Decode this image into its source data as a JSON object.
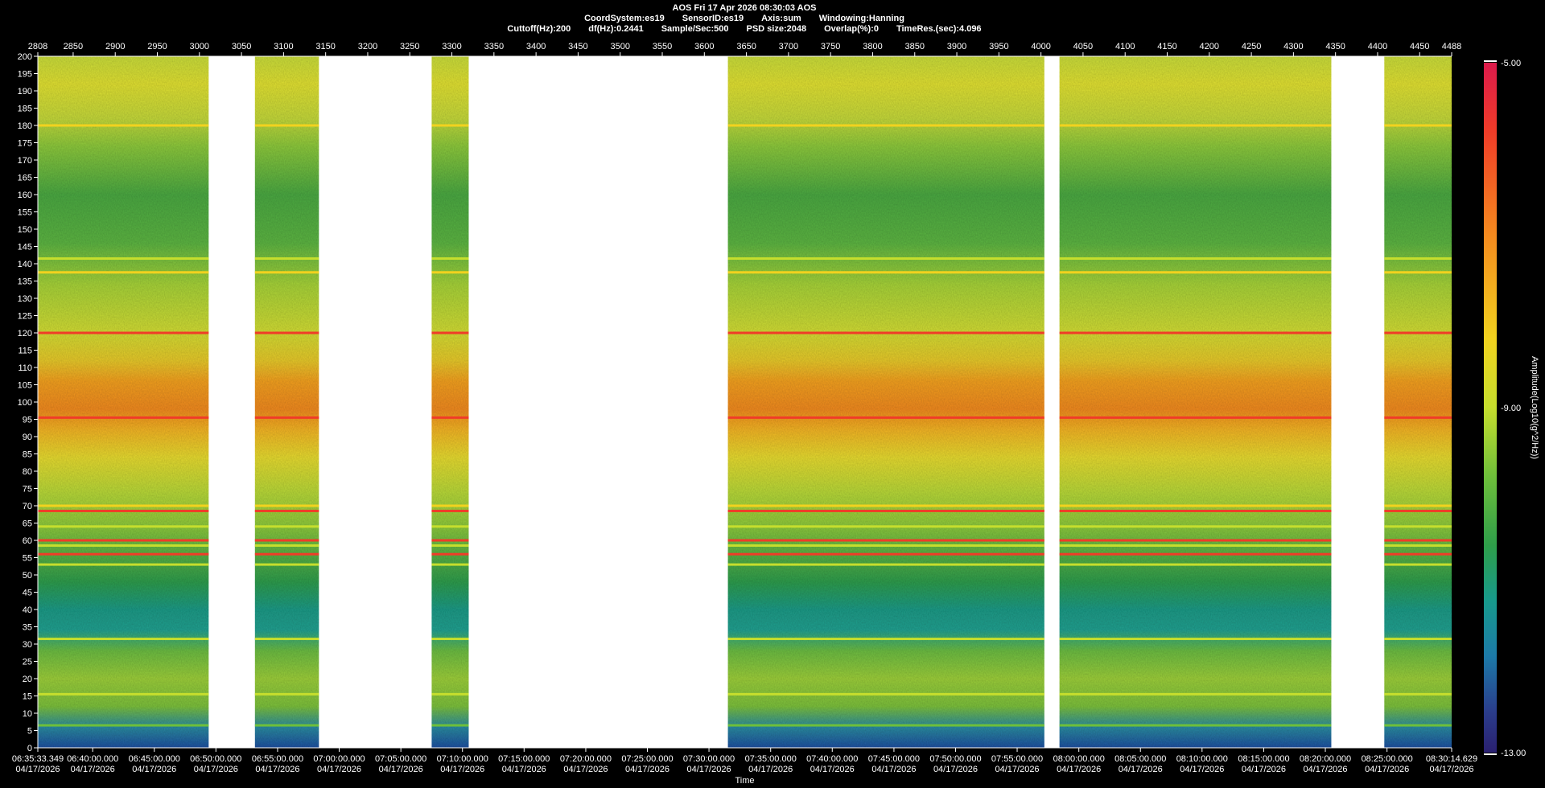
{
  "header": {
    "title": "AOS  Fri 17 Apr 2026 08:30:03  AOS",
    "line2": [
      "CoordSystem:es19",
      "SensorID:es19",
      "Axis:sum",
      "Windowing:Hanning"
    ],
    "line3": [
      "Cuttoff(Hz):200",
      "df(Hz):0.2441",
      "Sample/Sec:500",
      "PSD size:2048",
      "Overlap(%):0",
      "TimeRes.(sec):4.096"
    ]
  },
  "chart_data": {
    "type": "heatmap",
    "title": "AOS  Fri 17 Apr 2026 08:30:03  AOS",
    "xlabel": "Time",
    "ylabel": "",
    "ylim": [
      0,
      200
    ],
    "top_xlim": [
      2808,
      4488
    ],
    "top_ticks": [
      2808,
      2850,
      2900,
      2950,
      3000,
      3050,
      3100,
      3150,
      3200,
      3250,
      3300,
      3350,
      3400,
      3450,
      3500,
      3550,
      3600,
      3650,
      3700,
      3750,
      3800,
      3850,
      3900,
      3950,
      4000,
      4050,
      4100,
      4150,
      4200,
      4250,
      4300,
      4350,
      4400,
      4450,
      4488
    ],
    "y_ticks": [
      0,
      5,
      10,
      15,
      20,
      25,
      30,
      35,
      40,
      45,
      50,
      55,
      60,
      65,
      70,
      75,
      80,
      85,
      90,
      95,
      100,
      105,
      110,
      115,
      120,
      125,
      130,
      135,
      140,
      145,
      150,
      155,
      160,
      165,
      170,
      175,
      180,
      185,
      190,
      195,
      200
    ],
    "bottom_ticks": [
      {
        "time": "06:35:33.349",
        "date": "04/17/2026",
        "pos": 2808
      },
      {
        "time": "06:40:00.000",
        "date": "04/17/2026",
        "pos": 2873.2
      },
      {
        "time": "06:45:00.000",
        "date": "04/17/2026",
        "pos": 2946.4
      },
      {
        "time": "06:50:00.000",
        "date": "04/17/2026",
        "pos": 3019.6
      },
      {
        "time": "06:55:00.000",
        "date": "04/17/2026",
        "pos": 3092.9
      },
      {
        "time": "07:00:00.000",
        "date": "04/17/2026",
        "pos": 3166.1
      },
      {
        "time": "07:05:00.000",
        "date": "04/17/2026",
        "pos": 3239.4
      },
      {
        "time": "07:10:00.000",
        "date": "04/17/2026",
        "pos": 3312.6
      },
      {
        "time": "07:15:00.000",
        "date": "04/17/2026",
        "pos": 3385.8
      },
      {
        "time": "07:20:00.000",
        "date": "04/17/2026",
        "pos": 3459.1
      },
      {
        "time": "07:25:00.000",
        "date": "04/17/2026",
        "pos": 3532.3
      },
      {
        "time": "07:30:00.000",
        "date": "04/17/2026",
        "pos": 3605.5
      },
      {
        "time": "07:35:00.000",
        "date": "04/17/2026",
        "pos": 3678.8
      },
      {
        "time": "07:40:00.000",
        "date": "04/17/2026",
        "pos": 3752.0
      },
      {
        "time": "07:45:00.000",
        "date": "04/17/2026",
        "pos": 3825.3
      },
      {
        "time": "07:50:00.000",
        "date": "04/17/2026",
        "pos": 3898.5
      },
      {
        "time": "07:55:00.000",
        "date": "04/17/2026",
        "pos": 3971.7
      },
      {
        "time": "08:00:00.000",
        "date": "04/17/2026",
        "pos": 4045.0
      },
      {
        "time": "08:05:00.000",
        "date": "04/17/2026",
        "pos": 4118.2
      },
      {
        "time": "08:10:00.000",
        "date": "04/17/2026",
        "pos": 4191.4
      },
      {
        "time": "08:15:00.000",
        "date": "04/17/2026",
        "pos": 4264.7
      },
      {
        "time": "08:20:00.000",
        "date": "04/17/2026",
        "pos": 4337.9
      },
      {
        "time": "08:25:00.000",
        "date": "04/17/2026",
        "pos": 4411.2
      },
      {
        "time": "08:30:14.629",
        "date": "04/17/2026",
        "pos": 4488
      }
    ],
    "data_segments": [
      [
        2808,
        3011
      ],
      [
        3066,
        3142
      ],
      [
        3276,
        3320
      ],
      [
        3628,
        4004
      ],
      [
        4022,
        4345
      ],
      [
        4408,
        4488
      ]
    ],
    "horizontal_lines": [
      {
        "freq": 180,
        "level": -7.0
      },
      {
        "freq": 141.5,
        "level": -8.5
      },
      {
        "freq": 137.5,
        "level": -7.5
      },
      {
        "freq": 120,
        "level": -5.5
      },
      {
        "freq": 95.5,
        "level": -6.0
      },
      {
        "freq": 70,
        "level": -7.0
      },
      {
        "freq": 68.5,
        "level": -5.5
      },
      {
        "freq": 64,
        "level": -8.0
      },
      {
        "freq": 60,
        "level": -5.5
      },
      {
        "freq": 58.5,
        "level": -8.0
      },
      {
        "freq": 56,
        "level": -5.5
      },
      {
        "freq": 53,
        "level": -8.0
      },
      {
        "freq": 31.5,
        "level": -8.5
      },
      {
        "freq": 15.5,
        "level": -8.5
      },
      {
        "freq": 6.5,
        "level": -9.0
      }
    ],
    "colorbar": {
      "label": "Amplitude(Log10(g^2/Hz))",
      "min": -13.0,
      "max": -5.0,
      "ticks": [
        "-5.00",
        "-9.00",
        "-13.00"
      ],
      "colors": [
        "#dc1a4b",
        "#f03c28",
        "#f58a1e",
        "#f2d21e",
        "#c6de2d",
        "#6ebf3a",
        "#2e9e4a",
        "#179a8c",
        "#1c7aa8",
        "#2a3d8c",
        "#2a2070"
      ]
    }
  }
}
